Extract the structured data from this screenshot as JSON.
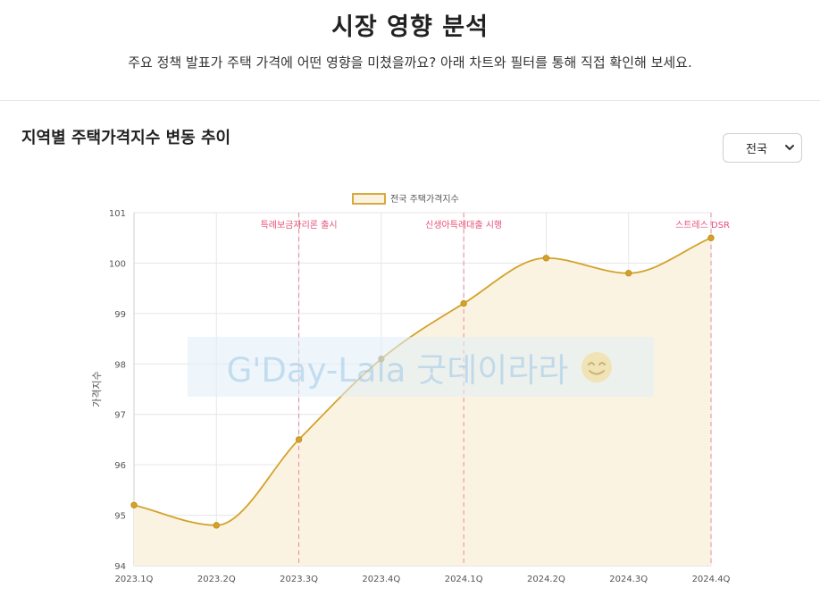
{
  "header": {
    "title": "시장 영향 분석",
    "subtitle": "주요 정책 발표가 주택 가격에 어떤 영향을 미쳤을까요? 아래 차트와 필터를 통해 직접 확인해 보세요."
  },
  "section": {
    "title": "지역별 주택가격지수 변동 추이"
  },
  "filter": {
    "selected": "전국"
  },
  "watermark": {
    "text": "G'Day-Lala 굿데이라라"
  },
  "colors": {
    "line": "#d4a22a",
    "fill": "#faf3e2",
    "annotation": "#e8527a",
    "grid": "#e6e6e6"
  },
  "chart_data": {
    "type": "line",
    "categories": [
      "2023.1Q",
      "2023.2Q",
      "2023.3Q",
      "2023.4Q",
      "2024.1Q",
      "2024.2Q",
      "2024.3Q",
      "2024.4Q"
    ],
    "series": [
      {
        "name": "전국 주택가격지수",
        "values": [
          95.2,
          94.8,
          96.5,
          98.1,
          99.2,
          100.1,
          99.8,
          100.5
        ]
      }
    ],
    "ylabel": "가격지수",
    "ylim": [
      94,
      101
    ],
    "yticks": [
      94,
      95,
      96,
      97,
      98,
      99,
      100,
      101
    ],
    "fill": true,
    "grid": true,
    "legend_position": "top",
    "annotations": [
      {
        "category": "2023.3Q",
        "label": "특례보금자리론 출시"
      },
      {
        "category": "2024.1Q",
        "label": "신생아특례대출 시행"
      },
      {
        "category": "2024.4Q",
        "label": "스트레스 DSR"
      }
    ]
  }
}
